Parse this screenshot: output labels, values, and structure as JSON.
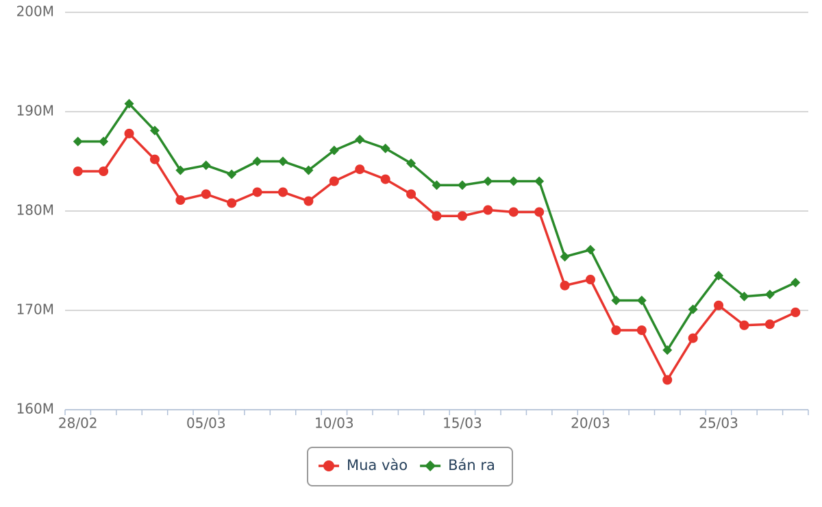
{
  "chart_data": {
    "type": "line",
    "categories": [
      "28/02",
      null,
      null,
      null,
      null,
      "05/03",
      null,
      null,
      null,
      null,
      "10/03",
      null,
      null,
      null,
      null,
      "15/03",
      null,
      null,
      null,
      null,
      "20/03",
      null,
      null,
      null,
      null,
      "25/03",
      null,
      null,
      null
    ],
    "series": [
      {
        "name": "Mua vào",
        "color": "#e8352e",
        "marker": "circle",
        "values": [
          184000000,
          184000000,
          187800000,
          185200000,
          181100000,
          181700000,
          180800000,
          181900000,
          181900000,
          181000000,
          183000000,
          184200000,
          183200000,
          181700000,
          179500000,
          179500000,
          180100000,
          179900000,
          179900000,
          172500000,
          173100000,
          168000000,
          168000000,
          163000000,
          167200000,
          170500000,
          168500000,
          168600000,
          169800000
        ]
      },
      {
        "name": "Bán ra",
        "color": "#2a8a2a",
        "marker": "diamond",
        "values": [
          187000000,
          187000000,
          190800000,
          188100000,
          184100000,
          184600000,
          183700000,
          185000000,
          185000000,
          184100000,
          186100000,
          187200000,
          186300000,
          184800000,
          182600000,
          182600000,
          183000000,
          183000000,
          183000000,
          175400000,
          176100000,
          171000000,
          171000000,
          166000000,
          170100000,
          173500000,
          171400000,
          171600000,
          172800000
        ]
      }
    ],
    "ylim": [
      160000000,
      200000000
    ],
    "yticks": [
      {
        "value": 160000000,
        "label": "160M"
      },
      {
        "value": 170000000,
        "label": "170M"
      },
      {
        "value": 180000000,
        "label": "180M"
      },
      {
        "value": 190000000,
        "label": "190M"
      },
      {
        "value": 200000000,
        "label": "200M"
      }
    ],
    "grid": true,
    "legend": "bottom"
  }
}
